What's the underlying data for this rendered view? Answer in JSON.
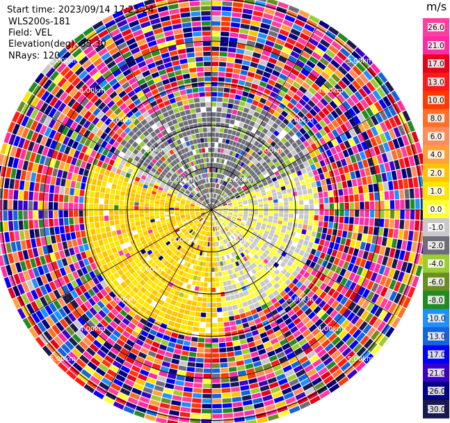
{
  "header": {
    "start_time": "Start time: 2023/09/14 17:23:24",
    "instrument": "WLS200s-181",
    "field": "Field: VEL",
    "elevation": "Elevation(deg): 35.30",
    "nrays": "NRays: 120"
  },
  "chart_data": {
    "type": "heatmap",
    "projection": "polar-ppi",
    "title": "",
    "range_rings": [
      {
        "km": 1.0,
        "label": "1.00km"
      },
      {
        "km": 2.0,
        "label": "2.00km"
      },
      {
        "km": 3.0,
        "label": "3.00km"
      },
      {
        "km": 4.0,
        "label": "4.00km"
      },
      {
        "km": 5.0,
        "label": "5.00km"
      }
    ],
    "max_range_km": 5.0,
    "nrays": 120,
    "azimuth_lines_deg": [
      0,
      30,
      60,
      90,
      120,
      150,
      180,
      210,
      240,
      270,
      300,
      330
    ],
    "colorbar": {
      "unit": "m/s",
      "min": -30.0,
      "max": 30.0,
      "ticks": [
        "26.0",
        "21.0",
        "17.0",
        "13.0",
        "10.0",
        "8.0",
        "6.0",
        "4.0",
        "2.0",
        "1.0",
        "0.0",
        "-1.0",
        "-2.0",
        "-4.0",
        "-6.0",
        "-8.0",
        "-10.0",
        "-13.0",
        "-17.0",
        "-21.0",
        "-26.0",
        "-30.0"
      ],
      "colors": [
        "#ff3fa0",
        "#ff2aa4",
        "#e8001a",
        "#ff1a1a",
        "#ff3a00",
        "#ff6f2a",
        "#ff8c5a",
        "#ffa03a",
        "#ffc400",
        "#ffe400",
        "#ffff33",
        "#c8c8c8",
        "#6e6e7a",
        "#9acd32",
        "#6b8e23",
        "#228b22",
        "#1e90ff",
        "#1464dc",
        "#0000ff",
        "#3a00c8",
        "#000080",
        "#1a1a50"
      ]
    },
    "regions": [
      {
        "name": "inner-north",
        "approx_velocity": -1.5,
        "range_km": [
          0.0,
          2.7
        ],
        "azimuth_deg": [
          -60,
          65
        ]
      },
      {
        "name": "inner-south",
        "approx_velocity": 2.0,
        "range_km": [
          0.0,
          3.0
        ],
        "azimuth_deg": [
          175,
          290
        ]
      },
      {
        "name": "inner-east",
        "approx_velocity": 0.0,
        "range_km": [
          0.0,
          2.6
        ],
        "azimuth_deg": [
          65,
          175
        ]
      },
      {
        "name": "inner-west",
        "approx_velocity": 0.0,
        "range_km": [
          0.0,
          2.6
        ],
        "azimuth_deg": [
          290,
          300
        ]
      },
      {
        "name": "outer-noise",
        "approx_velocity": null,
        "range_km": [
          3.0,
          5.2
        ],
        "azimuth_deg": [
          0,
          360
        ]
      }
    ]
  }
}
